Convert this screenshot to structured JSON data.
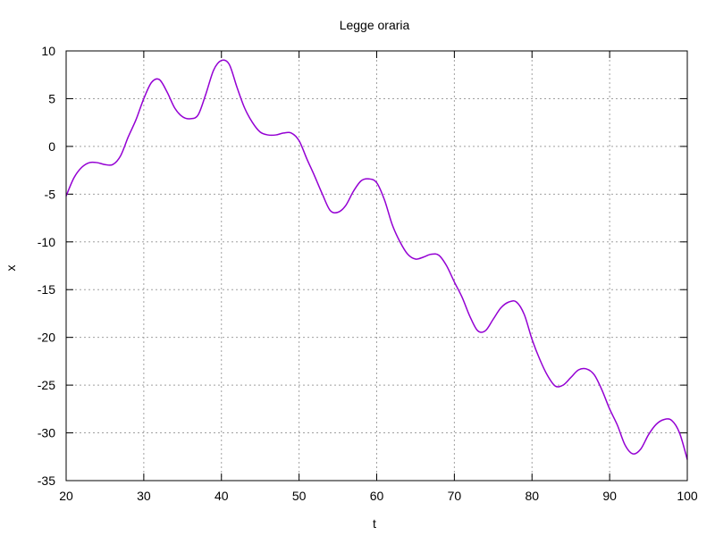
{
  "chart_data": {
    "type": "line",
    "title": "Legge oraria",
    "xlabel": "t",
    "ylabel": "x",
    "xlim": [
      20,
      100
    ],
    "ylim": [
      -35,
      10
    ],
    "xticks": [
      20,
      30,
      40,
      50,
      60,
      70,
      80,
      90,
      100
    ],
    "yticks": [
      10,
      5,
      0,
      -5,
      -10,
      -15,
      -20,
      -25,
      -30,
      -35
    ],
    "grid": true,
    "grid_style": "dotted",
    "series": [
      {
        "color": "#9400d3",
        "x": [
          20,
          21,
          22,
          23,
          24,
          25,
          26,
          27,
          28,
          29,
          30,
          31,
          32,
          33,
          34,
          35,
          36,
          37,
          38,
          39,
          40,
          41,
          42,
          43,
          44,
          45,
          46,
          47,
          48,
          49,
          50,
          51,
          52,
          53,
          54,
          55,
          56,
          57,
          58,
          59,
          60,
          61,
          62,
          63,
          64,
          65,
          66,
          67,
          68,
          69,
          70,
          71,
          72,
          73,
          74,
          75,
          76,
          77,
          78,
          79,
          80,
          81,
          82,
          83,
          84,
          85,
          86,
          87,
          88,
          89,
          90,
          91,
          92,
          93,
          94,
          95,
          96,
          97,
          98,
          99,
          100
        ],
        "y": [
          -5.2,
          -3.3,
          -2.2,
          -1.7,
          -1.7,
          -1.9,
          -1.9,
          -1.0,
          1.0,
          2.8,
          5.0,
          6.7,
          7.0,
          5.7,
          4.0,
          3.1,
          2.9,
          3.3,
          5.5,
          8.0,
          9.0,
          8.6,
          6.2,
          4.0,
          2.5,
          1.5,
          1.2,
          1.2,
          1.4,
          1.4,
          0.6,
          -1.3,
          -3.1,
          -5.0,
          -6.7,
          -6.9,
          -6.2,
          -4.7,
          -3.6,
          -3.4,
          -3.8,
          -5.6,
          -8.2,
          -10.0,
          -11.3,
          -11.8,
          -11.6,
          -11.3,
          -11.4,
          -12.5,
          -14.2,
          -15.8,
          -17.8,
          -19.3,
          -19.3,
          -18.1,
          -16.9,
          -16.3,
          -16.3,
          -17.6,
          -20.2,
          -22.3,
          -24.0,
          -25.1,
          -25.0,
          -24.2,
          -23.4,
          -23.3,
          -23.9,
          -25.5,
          -27.5,
          -29.2,
          -31.3,
          -32.2,
          -31.7,
          -30.2,
          -29.1,
          -28.6,
          -28.7,
          -30.0,
          -32.8
        ]
      }
    ]
  }
}
